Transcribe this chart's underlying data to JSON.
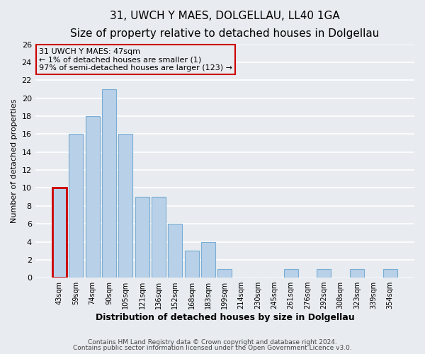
{
  "title": "31, UWCH Y MAES, DOLGELLAU, LL40 1GA",
  "subtitle": "Size of property relative to detached houses in Dolgellau",
  "xlabel": "Distribution of detached houses by size in Dolgellau",
  "ylabel": "Number of detached properties",
  "bins": [
    "43sqm",
    "59sqm",
    "74sqm",
    "90sqm",
    "105sqm",
    "121sqm",
    "136sqm",
    "152sqm",
    "168sqm",
    "183sqm",
    "199sqm",
    "214sqm",
    "230sqm",
    "245sqm",
    "261sqm",
    "276sqm",
    "292sqm",
    "308sqm",
    "323sqm",
    "339sqm",
    "354sqm"
  ],
  "values": [
    10,
    16,
    18,
    21,
    16,
    9,
    9,
    6,
    3,
    4,
    1,
    0,
    0,
    0,
    1,
    0,
    1,
    0,
    1,
    0,
    1
  ],
  "bar_color": "#b8d0e8",
  "bar_edge_color": "#7aadd4",
  "highlight_bar_index": 0,
  "highlight_bar_edge_color": "#cc0000",
  "annotation_box_text": "31 UWCH Y MAES: 47sqm\n← 1% of detached houses are smaller (1)\n97% of semi-detached houses are larger (123) →",
  "annotation_box_edge_color": "#cc0000",
  "ylim": [
    0,
    26
  ],
  "yticks": [
    0,
    2,
    4,
    6,
    8,
    10,
    12,
    14,
    16,
    18,
    20,
    22,
    24,
    26
  ],
  "footer_line1": "Contains HM Land Registry data © Crown copyright and database right 2024.",
  "footer_line2": "Contains public sector information licensed under the Open Government Licence v3.0.",
  "background_color": "#e8ecf0",
  "grid_color": "#ffffff",
  "title_fontsize": 11,
  "subtitle_fontsize": 9.5,
  "xlabel_fontsize": 9,
  "ylabel_fontsize": 8,
  "footer_fontsize": 6.5
}
